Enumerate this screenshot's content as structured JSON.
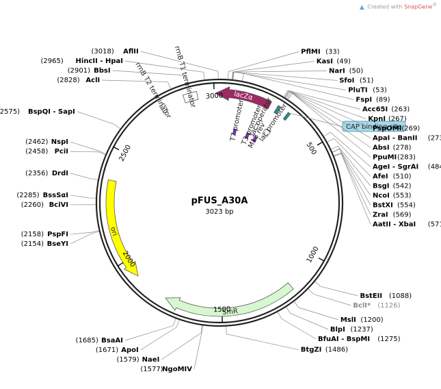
{
  "credit": {
    "prefix": "Created with",
    "brand": "SnapGene",
    "mark": "®"
  },
  "plasmid": {
    "name": "pFUS_A30A",
    "size_label": "3023 bp",
    "length": 3023
  },
  "ticks": [
    {
      "label": "500",
      "pos": 500
    },
    {
      "label": "1000",
      "pos": 1000
    },
    {
      "label": "1500",
      "pos": 1500
    },
    {
      "label": "2000",
      "pos": 2000
    },
    {
      "label": "2500",
      "pos": 2500
    },
    {
      "label": "3000",
      "pos": 3000
    }
  ],
  "sites": [
    {
      "id": "afl2",
      "name": "AflII",
      "pos_text": "(3018)",
      "pos": 3018,
      "side": "left"
    },
    {
      "id": "hinc2",
      "name": "HincII - HpaI",
      "pos_text": "(2965)",
      "pos": 2965,
      "side": "left"
    },
    {
      "id": "bbsi",
      "name": "BbsI",
      "pos_text": "(2901)",
      "pos": 2901,
      "side": "left"
    },
    {
      "id": "acli",
      "name": "AclI",
      "pos_text": "(2828)",
      "pos": 2828,
      "side": "left"
    },
    {
      "id": "bspqi",
      "name": "BspQI - SapI",
      "pos_text": "(2575)",
      "pos": 2575,
      "side": "left"
    },
    {
      "id": "nspi",
      "name": "NspI",
      "pos_text": "(2462)",
      "pos": 2462,
      "side": "left"
    },
    {
      "id": "pcii",
      "name": "PciI",
      "pos_text": "(2458)",
      "pos": 2458,
      "side": "left"
    },
    {
      "id": "drdi",
      "name": "DrdI",
      "pos_text": "(2356)",
      "pos": 2356,
      "side": "left"
    },
    {
      "id": "bsssai",
      "name": "BssSαI",
      "pos_text": "(2285)",
      "pos": 2285,
      "side": "left"
    },
    {
      "id": "bcivi",
      "name": "BciVI",
      "pos_text": "(2260)",
      "pos": 2260,
      "side": "left"
    },
    {
      "id": "pspfi",
      "name": "PspFI",
      "pos_text": "(2158)",
      "pos": 2158,
      "side": "left"
    },
    {
      "id": "bseyi",
      "name": "BseYI",
      "pos_text": "(2154)",
      "pos": 2154,
      "side": "left"
    },
    {
      "id": "bsaai",
      "name": "BsaAI",
      "pos_text": "(1685)",
      "pos": 1685,
      "side": "left"
    },
    {
      "id": "apoi",
      "name": "ApoI",
      "pos_text": "(1671)",
      "pos": 1671,
      "side": "left"
    },
    {
      "id": "naei",
      "name": "NaeI",
      "pos_text": "(1579)",
      "pos": 1579,
      "side": "left"
    },
    {
      "id": "ngomiv",
      "name": "NgoMIV",
      "pos_text": "(1577)",
      "pos": 1577,
      "side": "left"
    },
    {
      "id": "pfl",
      "name": "PflMI",
      "pos_text": "(33)",
      "pos": 33,
      "side": "right"
    },
    {
      "id": "kasi",
      "name": "KasI",
      "pos_text": "(49)",
      "pos": 49,
      "side": "right"
    },
    {
      "id": "nari",
      "name": "NarI",
      "pos_text": "(50)",
      "pos": 50,
      "side": "right"
    },
    {
      "id": "sfoi",
      "name": "SfoI",
      "pos_text": "(51)",
      "pos": 51,
      "side": "right"
    },
    {
      "id": "pluti",
      "name": "PluTI",
      "pos_text": "(53)",
      "pos": 53,
      "side": "right"
    },
    {
      "id": "fspi",
      "name": "FspI",
      "pos_text": "(89)",
      "pos": 89,
      "side": "right"
    },
    {
      "id": "acc65i",
      "name": "Acc65I",
      "pos_text": "(263)",
      "pos": 263,
      "side": "right"
    },
    {
      "id": "kpni",
      "name": "KpnI",
      "pos_text": "(267)",
      "pos": 267,
      "side": "right"
    },
    {
      "id": "psp",
      "name": "PspOMI",
      "pos_text": "(269)",
      "pos": 269,
      "side": "right"
    },
    {
      "id": "apai",
      "name": "ApaI - BanII",
      "pos_text": "(273)",
      "pos": 273,
      "side": "right"
    },
    {
      "id": "absi",
      "name": "AbsI",
      "pos_text": "(278)",
      "pos": 278,
      "side": "right"
    },
    {
      "id": "ppumi",
      "name": "PpuMI",
      "pos_text": "(283)",
      "pos": 283,
      "side": "right"
    },
    {
      "id": "agei",
      "name": "AgeI - SgrAI",
      "pos_text": "(484)",
      "pos": 484,
      "side": "right"
    },
    {
      "id": "afei",
      "name": "AfeI",
      "pos_text": "(510)",
      "pos": 510,
      "side": "right"
    },
    {
      "id": "bsgi",
      "name": "BsgI",
      "pos_text": "(542)",
      "pos": 542,
      "side": "right"
    },
    {
      "id": "ncoi",
      "name": "NcoI",
      "pos_text": "(553)",
      "pos": 553,
      "side": "right"
    },
    {
      "id": "bstxi",
      "name": "BstXI",
      "pos_text": "(554)",
      "pos": 554,
      "side": "right"
    },
    {
      "id": "zrai",
      "name": "ZraI",
      "pos_text": "(569)",
      "pos": 569,
      "side": "right"
    },
    {
      "id": "aatii",
      "name": "AatII - XbaI",
      "pos_text": "(571)",
      "pos": 571,
      "side": "right"
    },
    {
      "id": "bsteii",
      "name": "BstEII",
      "pos_text": "(1088)",
      "pos": 1088,
      "side": "right"
    },
    {
      "id": "bcli",
      "name": "BclI*",
      "pos_text": "(1126)",
      "pos": 1126,
      "side": "right",
      "gray": true
    },
    {
      "id": "msli",
      "name": "MslI",
      "pos_text": "(1200)",
      "pos": 1200,
      "side": "right"
    },
    {
      "id": "blpi",
      "name": "BlpI",
      "pos_text": "(1237)",
      "pos": 1237,
      "side": "right"
    },
    {
      "id": "bfuai",
      "name": "BfuAI - BspMI",
      "pos_text": "(1275)",
      "pos": 1275,
      "side": "right"
    },
    {
      "id": "btgzi",
      "name": "BtgZI",
      "pos_text": "(1486)",
      "pos": 1486,
      "side": "right"
    }
  ],
  "features": [
    {
      "id": "lacz",
      "label": "lacZα",
      "start": 3005,
      "end": 230,
      "dir": "ccw",
      "color": "#9c2b62",
      "ring": "outer",
      "label_inside": true
    },
    {
      "id": "smr",
      "label": "SmR",
      "start": 1170,
      "end": 1760,
      "dir": "cw",
      "color": "#d6f7cf",
      "ring": "outer",
      "label_inside": true
    },
    {
      "id": "ori",
      "label": "ori",
      "start": 1915,
      "end": 2365,
      "dir": "ccw",
      "color": "#ffff00",
      "ring": "outer",
      "label_inside": true
    },
    {
      "id": "rrnbt1",
      "label": "rrnB T1 terminator",
      "start": 2865,
      "end": 2925,
      "dir": "none",
      "color": "#ffffff",
      "ring": "outer"
    },
    {
      "id": "rrnbt2",
      "label": "rrnB T2 terminator",
      "start": 2755,
      "end": 2778,
      "dir": "none",
      "color": "#ffffff",
      "ring": "outer"
    },
    {
      "id": "lacprom",
      "label": "lac promoter",
      "start": 268,
      "end": 300,
      "dir": "none",
      "color": "#ffffff",
      "ring": "inner"
    },
    {
      "id": "lacop",
      "label": "lac operator",
      "start": 208,
      "end": 225,
      "dir": "none",
      "color": "#ffffff",
      "ring": "inner"
    },
    {
      "id": "t7",
      "label": "T7 promoter",
      "start": 92,
      "end": 110,
      "dir": "none",
      "color": "#8b1fd6",
      "ring": "inner2"
    },
    {
      "id": "t3",
      "label": "T3 promoter",
      "start": 180,
      "end": 198,
      "dir": "none",
      "color": "#8b1fd6",
      "ring": "inner2"
    },
    {
      "id": "m13",
      "label": "M13 rev",
      "start": 235,
      "end": 252,
      "dir": "none",
      "color": "#8b1fd6",
      "ring": "inner2"
    },
    {
      "id": "cap",
      "label": "CAP binding site",
      "start": 313,
      "end": 325,
      "dir": "none",
      "color": "#2b8a93",
      "ring": "outer"
    },
    {
      "id": "cap2",
      "label": "",
      "start": 262,
      "end": 275,
      "dir": "none",
      "color": "#2b8a93",
      "ring": "outer"
    }
  ]
}
